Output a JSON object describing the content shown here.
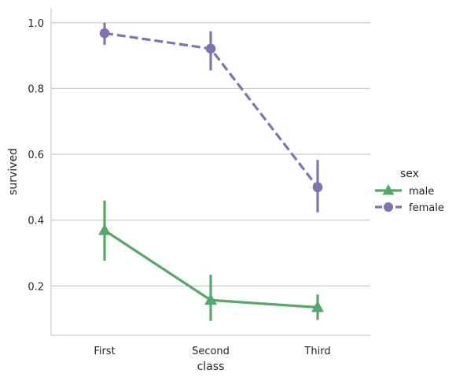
{
  "chart_data": {
    "type": "line",
    "title": "",
    "xlabel": "class",
    "ylabel": "survived",
    "categories": [
      "First",
      "Second",
      "Third"
    ],
    "ylim": [
      0.05,
      1.045
    ],
    "yticks": [
      0.2,
      0.4,
      0.6,
      0.8,
      1.0
    ],
    "ytick_labels": [
      "0.2",
      "0.4",
      "0.6",
      "0.8",
      "1.0"
    ],
    "grid": "horizontal",
    "legend": {
      "title": "sex",
      "placement": "right"
    },
    "series": [
      {
        "name": "male",
        "values": [
          0.369,
          0.157,
          0.135
        ],
        "ci_low": [
          0.277,
          0.094,
          0.097
        ],
        "ci_high": [
          0.459,
          0.234,
          0.174
        ],
        "color": "#55a868",
        "marker": "triangle",
        "linestyle": "solid"
      },
      {
        "name": "female",
        "values": [
          0.968,
          0.921,
          0.5
        ],
        "ci_low": [
          0.933,
          0.855,
          0.424
        ],
        "ci_high": [
          1.0,
          0.974,
          0.583
        ],
        "color": "#8172b3",
        "marker": "circle",
        "linestyle": "dashed"
      }
    ]
  }
}
